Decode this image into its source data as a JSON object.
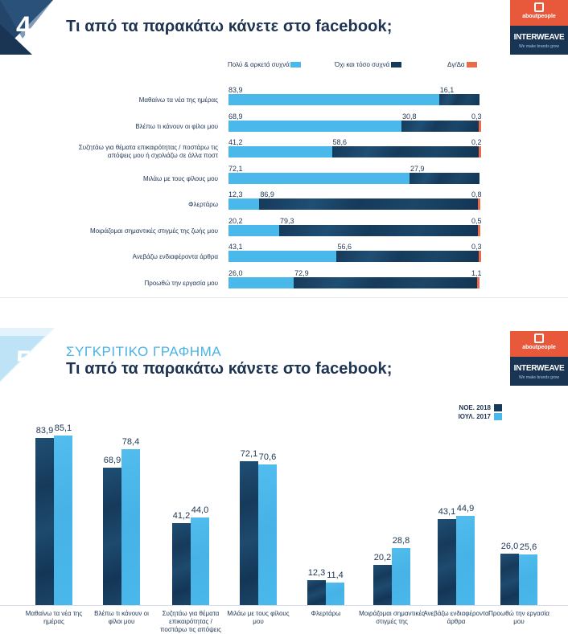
{
  "slide4": {
    "number": "4",
    "title": "Τι από τα παρακάτω κάνετε στο facebook;",
    "logo_top": "aboutpeople",
    "logo_bottom": "INTERWEAVE",
    "logo_tagline": "We make brands grow"
  },
  "slide5": {
    "number": "5",
    "subtitle": "ΣΥΓΚΡΙΤΙΚΟ ΓΡΑΦΗΜΑ",
    "title": "Τι από τα παρακάτω κάνετε στο facebook;",
    "logo_top": "aboutpeople",
    "logo_bottom": "INTERWEAVE",
    "logo_tagline": "We make brands grow"
  },
  "colors": {
    "light": "#4ab8ea",
    "dark": "#163a5a",
    "dark2": "#1f4f74",
    "orange": "#ec6a4c"
  },
  "chart_data": [
    {
      "type": "bar",
      "orientation": "horizontal",
      "stacked": true,
      "legend": "top",
      "categories": [
        "Μαθαίνω τα νέα της ημέρας",
        "Βλέπω τι κάνουν οι φίλοι μου",
        "Συζητάω για θέματα επικαιρότητας / ποστάρω τις απόψεις μου ή σχολιάζω σε άλλα ποστ",
        "Μιλάω με τους φίλους μου",
        "Φλερτάρω",
        "Μοιράζομαι σημαντικές στιγμές της ζωής μου",
        "Ανεβάζω ενδιαφέροντα άρθρα",
        "Προωθώ την εργασία μου"
      ],
      "series": [
        {
          "name": "Πολύ & αρκετά συχνά",
          "values": [
            83.9,
            68.9,
            41.2,
            72.1,
            12.3,
            20.2,
            43.1,
            26.0
          ]
        },
        {
          "name": "Όχι και τόσο συχνά",
          "values": [
            16.1,
            30.8,
            58.6,
            27.9,
            86.9,
            79.3,
            56.6,
            72.9
          ]
        },
        {
          "name": "Δγ/Δα",
          "values": [
            null,
            0.3,
            0.2,
            null,
            0.8,
            0.5,
            0.3,
            1.1
          ]
        }
      ],
      "value_labels": [
        [
          "83,9",
          "16,1",
          ""
        ],
        [
          "68,9",
          "30,8",
          "0,3"
        ],
        [
          "41,2",
          "58,6",
          "0,2"
        ],
        [
          "72,1",
          "27,9",
          ""
        ],
        [
          "12,3",
          "86,9",
          "0,8"
        ],
        [
          "20,2",
          "79,3",
          "0,5"
        ],
        [
          "43,1",
          "56,6",
          "0,3"
        ],
        [
          "26,0",
          "72,9",
          "1,1"
        ]
      ],
      "xlim": [
        0,
        100
      ]
    },
    {
      "type": "bar",
      "orientation": "vertical",
      "legend": "top-right",
      "categories": [
        "Μαθαίνω τα νέα της ημέρας",
        "Βλέπω τι κάνουν οι φίλοι μου",
        "Συζητάω για θέματα επικαιρότητας / ποστάρω τις απόψεις μου ή",
        "Μιλάω με τους φίλους μου",
        "Φλερτάρω",
        "Μοιράζομαι σημαντικές στιγμές της",
        "Ανεβάζω ενδιαφέροντα άρθρα",
        "Προωθώ την εργασία μου"
      ],
      "series": [
        {
          "name": "ΝΟΕ. 2018",
          "values": [
            83.9,
            68.9,
            41.2,
            72.1,
            12.3,
            20.2,
            43.1,
            26.0
          ]
        },
        {
          "name": "ΙΟΥΛ. 2017",
          "values": [
            85.1,
            78.4,
            44.0,
            70.6,
            11.4,
            28.8,
            44.9,
            25.6
          ]
        }
      ],
      "value_labels": [
        [
          "83,9",
          "85,1"
        ],
        [
          "68,9",
          "78,4"
        ],
        [
          "41,2",
          "44,0"
        ],
        [
          "72,1",
          "70,6"
        ],
        [
          "12,3",
          "11,4"
        ],
        [
          "20,2",
          "28,8"
        ],
        [
          "43,1",
          "44,9"
        ],
        [
          "26,0",
          "25,6"
        ]
      ],
      "ylim": [
        0,
        90
      ]
    }
  ]
}
